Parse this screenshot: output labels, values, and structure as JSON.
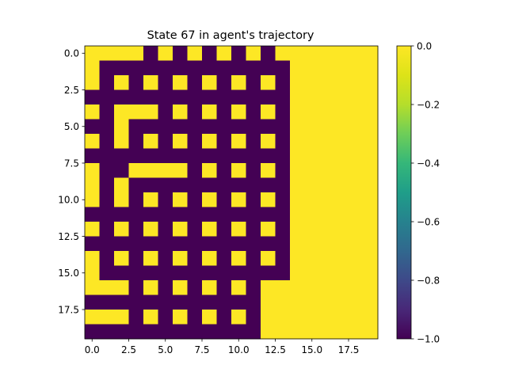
{
  "chart_data": {
    "type": "heatmap",
    "title": "State 67 in agent's trajectory",
    "xlabel": "",
    "ylabel": "",
    "rows": 20,
    "cols": 20,
    "x_ticks": [
      "0.0",
      "2.5",
      "5.0",
      "7.5",
      "10.0",
      "12.5",
      "15.0",
      "17.5"
    ],
    "y_ticks": [
      "0.0",
      "2.5",
      "5.0",
      "7.5",
      "10.0",
      "12.5",
      "15.0",
      "17.5"
    ],
    "x_tick_values": [
      0,
      2.5,
      5,
      7.5,
      10,
      12.5,
      15,
      17.5
    ],
    "y_tick_values": [
      0,
      2.5,
      5,
      7.5,
      10,
      12.5,
      15,
      17.5
    ],
    "colorbar": {
      "ticks": [
        "0.0",
        "−0.2",
        "−0.4",
        "−0.6",
        "−0.8",
        "−1.0"
      ],
      "tick_values": [
        0,
        -0.2,
        -0.4,
        -0.6,
        -0.8,
        -1.0
      ],
      "vmin": -1.0,
      "vmax": 0.0,
      "colormap": "viridis"
    },
    "colors": {
      "low": "#440154",
      "high": "#fde725"
    },
    "values": [
      [
        0,
        0,
        0,
        0,
        -1,
        0,
        -1,
        0,
        -1,
        0,
        -1,
        0,
        -1,
        0,
        0,
        0,
        0,
        0,
        0,
        0
      ],
      [
        0,
        -1,
        -1,
        -1,
        -1,
        -1,
        -1,
        -1,
        -1,
        -1,
        -1,
        -1,
        -1,
        -1,
        0,
        0,
        0,
        0,
        0,
        0
      ],
      [
        0,
        -1,
        0,
        -1,
        0,
        -1,
        0,
        -1,
        0,
        -1,
        0,
        -1,
        0,
        -1,
        0,
        0,
        0,
        0,
        0,
        0
      ],
      [
        -1,
        -1,
        -1,
        -1,
        -1,
        -1,
        -1,
        -1,
        -1,
        -1,
        -1,
        -1,
        -1,
        -1,
        0,
        0,
        0,
        0,
        0,
        0
      ],
      [
        0,
        -1,
        0,
        0,
        0,
        -1,
        0,
        -1,
        0,
        -1,
        0,
        -1,
        0,
        -1,
        0,
        0,
        0,
        0,
        0,
        0
      ],
      [
        -1,
        -1,
        0,
        -1,
        -1,
        -1,
        -1,
        -1,
        -1,
        -1,
        -1,
        -1,
        -1,
        -1,
        0,
        0,
        0,
        0,
        0,
        0
      ],
      [
        0,
        -1,
        0,
        -1,
        0,
        -1,
        0,
        -1,
        0,
        -1,
        0,
        -1,
        0,
        -1,
        0,
        0,
        0,
        0,
        0,
        0
      ],
      [
        -1,
        -1,
        -1,
        -1,
        -1,
        -1,
        -1,
        -1,
        -1,
        -1,
        -1,
        -1,
        -1,
        -1,
        0,
        0,
        0,
        0,
        0,
        0
      ],
      [
        0,
        -1,
        -1,
        0,
        0,
        0,
        0,
        -1,
        0,
        -1,
        0,
        -1,
        0,
        -1,
        0,
        0,
        0,
        0,
        0,
        0
      ],
      [
        0,
        -1,
        0,
        -1,
        -1,
        -1,
        -1,
        -1,
        -1,
        -1,
        -1,
        -1,
        -1,
        -1,
        0,
        0,
        0,
        0,
        0,
        0
      ],
      [
        0,
        -1,
        0,
        -1,
        0,
        -1,
        0,
        -1,
        0,
        -1,
        0,
        -1,
        0,
        -1,
        0,
        0,
        0,
        0,
        0,
        0
      ],
      [
        -1,
        -1,
        -1,
        -1,
        -1,
        -1,
        -1,
        -1,
        -1,
        -1,
        -1,
        -1,
        -1,
        -1,
        0,
        0,
        0,
        0,
        0,
        0
      ],
      [
        0,
        -1,
        0,
        -1,
        0,
        -1,
        0,
        -1,
        0,
        -1,
        0,
        -1,
        0,
        -1,
        0,
        0,
        0,
        0,
        0,
        0
      ],
      [
        -1,
        -1,
        -1,
        -1,
        -1,
        -1,
        -1,
        -1,
        -1,
        -1,
        -1,
        -1,
        -1,
        -1,
        0,
        0,
        0,
        0,
        0,
        0
      ],
      [
        0,
        -1,
        0,
        -1,
        0,
        -1,
        0,
        -1,
        0,
        -1,
        0,
        -1,
        0,
        -1,
        0,
        0,
        0,
        0,
        0,
        0
      ],
      [
        0,
        -1,
        -1,
        -1,
        -1,
        -1,
        -1,
        -1,
        -1,
        -1,
        -1,
        -1,
        -1,
        -1,
        0,
        0,
        0,
        0,
        0,
        0
      ],
      [
        0,
        0,
        0,
        -1,
        0,
        -1,
        0,
        -1,
        0,
        -1,
        0,
        -1,
        0,
        0,
        0,
        0,
        0,
        0,
        0,
        0
      ],
      [
        -1,
        -1,
        -1,
        -1,
        -1,
        -1,
        -1,
        -1,
        -1,
        -1,
        -1,
        -1,
        0,
        0,
        0,
        0,
        0,
        0,
        0,
        0
      ],
      [
        0,
        0,
        0,
        -1,
        0,
        -1,
        0,
        -1,
        0,
        -1,
        0,
        -1,
        0,
        0,
        0,
        0,
        0,
        0,
        0,
        0
      ],
      [
        -1,
        -1,
        -1,
        -1,
        -1,
        -1,
        -1,
        -1,
        -1,
        -1,
        -1,
        -1,
        0,
        0,
        0,
        0,
        0,
        0,
        0,
        0
      ]
    ]
  }
}
